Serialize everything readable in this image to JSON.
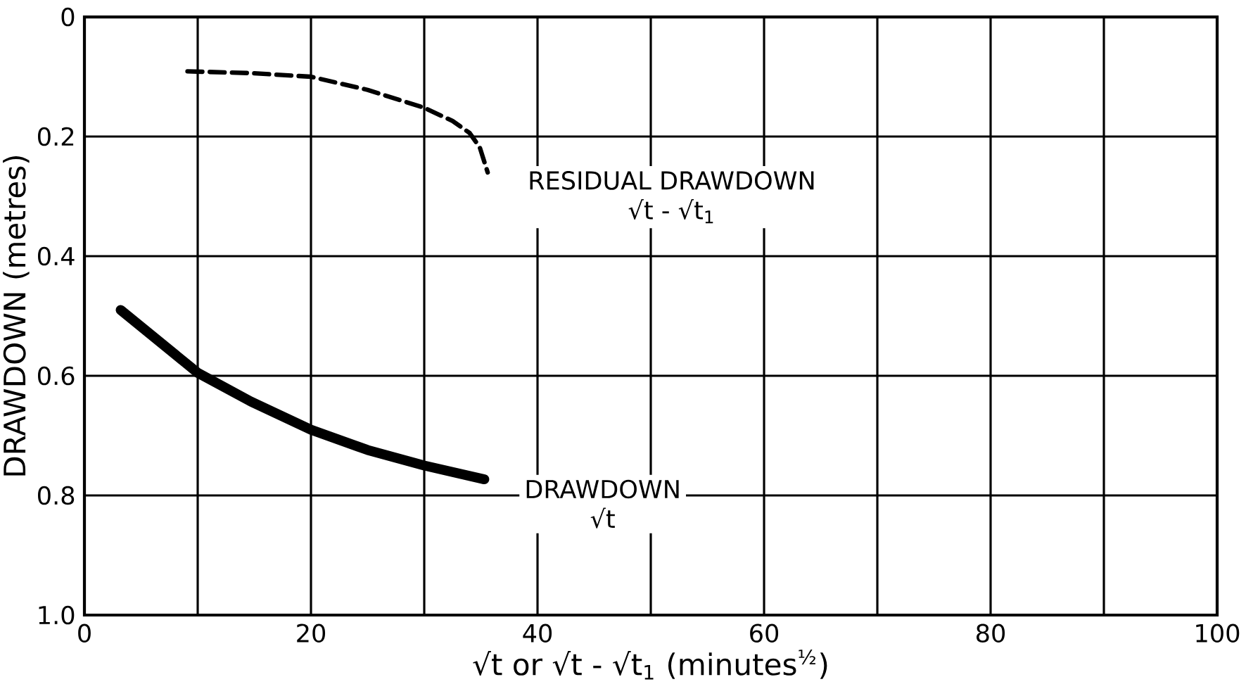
{
  "chart_data": {
    "type": "line",
    "xlabel": "√t or √t - √t$_{1}$ (minutes$^{½}$)",
    "ylabel": "DRAWDOWN (metres)",
    "xlim": [
      0,
      100
    ],
    "xticks": [
      0,
      20,
      40,
      60,
      80,
      100
    ],
    "ylim": [
      1.0,
      0
    ],
    "yticks": [
      0,
      0.2,
      0.4,
      0.6,
      0.8,
      {
        "value": 1.0,
        "label": "1.0"
      }
    ],
    "grid": true,
    "series": [
      {
        "name": "RESIDUAL DRAWDOWN",
        "color": "#000000",
        "line_style": "dashed",
        "x": [
          9.1,
          14.7,
          20,
          25,
          30,
          32.5,
          34,
          34.9,
          35.6
        ],
        "values": [
          0.091,
          0.094,
          0.1,
          0.122,
          0.152,
          0.174,
          0.194,
          0.218,
          0.26
        ]
      },
      {
        "name": "DRAWDOWN",
        "color": "#000000",
        "line_style": "solid",
        "x": [
          3.2,
          10,
          14.7,
          20,
          25,
          30,
          35.3
        ],
        "values": [
          0.49,
          0.595,
          0.643,
          0.69,
          0.724,
          0.75,
          0.773
        ]
      }
    ],
    "annotations": [
      "√t - √t$_{1}$",
      "√t"
    ]
  }
}
